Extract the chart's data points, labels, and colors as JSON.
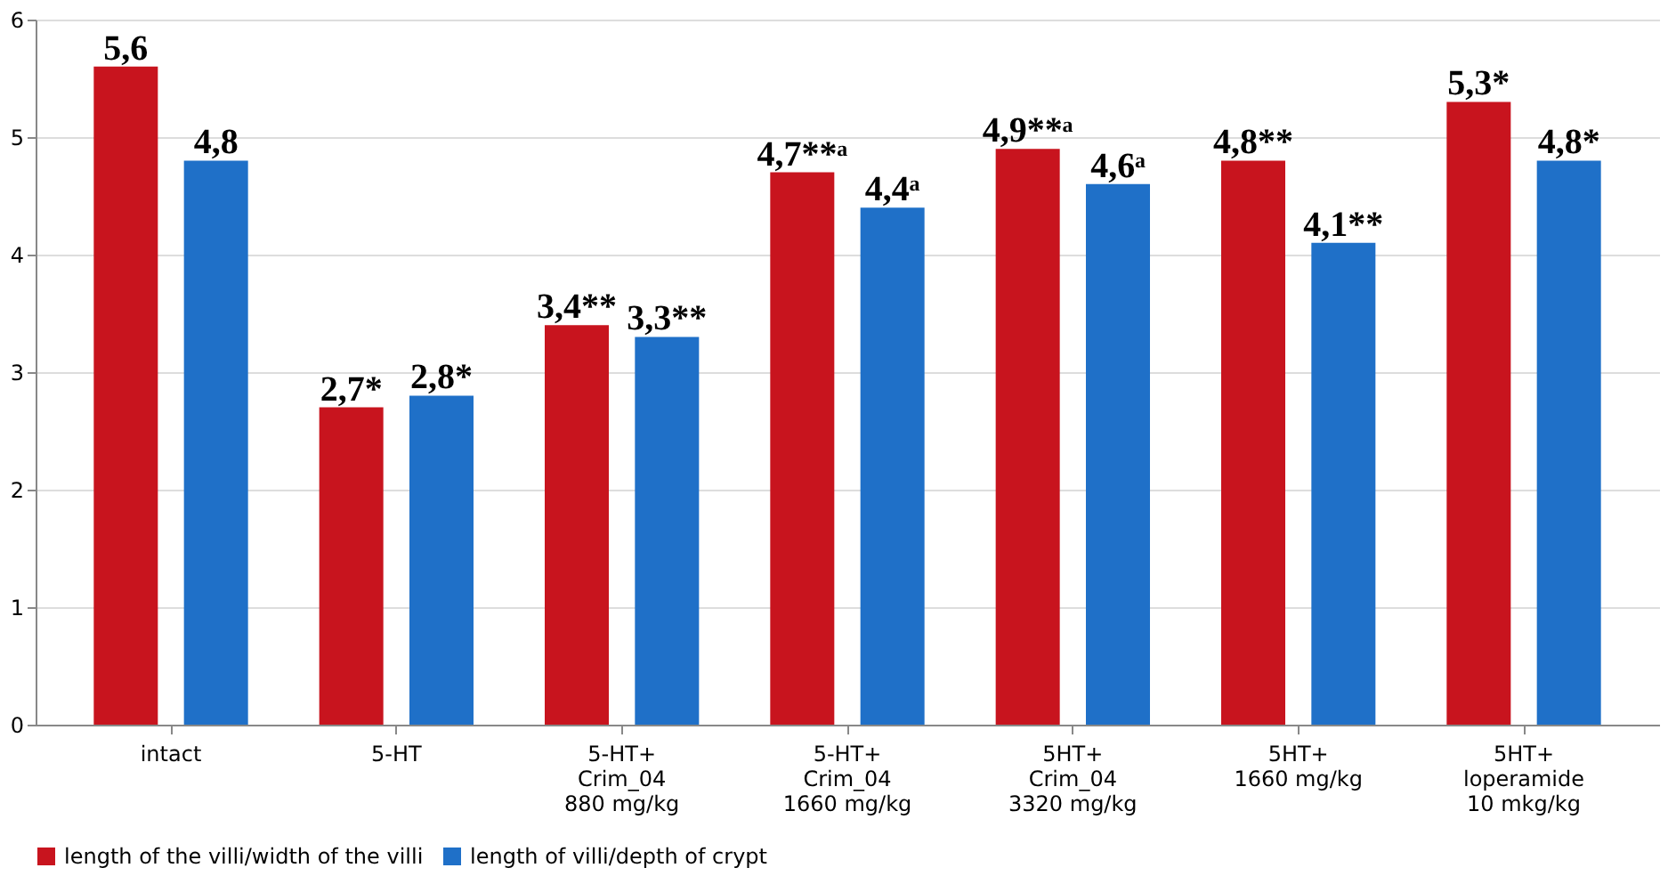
{
  "chart_data": {
    "type": "bar",
    "categories": [
      "intact",
      "5-HT",
      "5-HT+\nCrim_04\n880 mg/kg",
      "5-HT+\nCrim_04\n1660 mg/kg",
      "5HT+\nCrim_04\n3320 mg/kg",
      "5HT+\n1660 mg/kg",
      "5HT+\nloperamide\n10 mkg/kg"
    ],
    "series": [
      {
        "name": "length of the villi/width of the villi",
        "color": "#c8141e",
        "values": [
          5.6,
          2.7,
          3.4,
          4.7,
          4.9,
          4.8,
          5.3
        ],
        "value_labels": [
          "5,6",
          "2,7*",
          "3,4**",
          "4,7**ᵃ",
          "4,9**ᵃ",
          "4,8**",
          "5,3*"
        ]
      },
      {
        "name": "length of villi/depth of crypt",
        "color": "#1f70c8",
        "values": [
          4.8,
          2.8,
          3.3,
          4.4,
          4.6,
          4.1,
          4.8
        ],
        "value_labels": [
          "4,8",
          "2,8*",
          "3,3**",
          "4,4ᵃ",
          "4,6ᵃ",
          "4,1**",
          "4,8*"
        ]
      }
    ],
    "ylim": [
      0,
      6
    ],
    "yticks": [
      0,
      1,
      2,
      3,
      4,
      5,
      6
    ],
    "grid": "y",
    "legend": "bottom"
  }
}
